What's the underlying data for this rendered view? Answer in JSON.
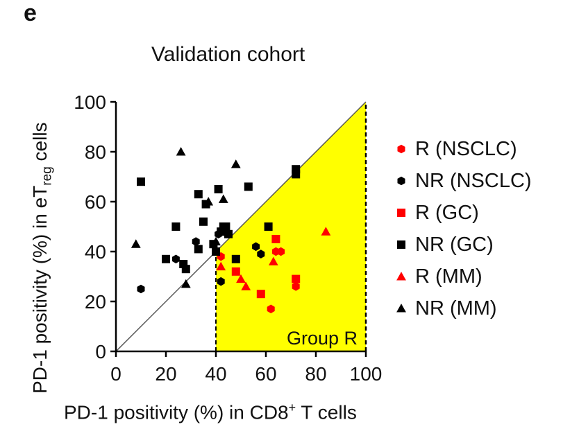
{
  "panel_letter": "e",
  "chart_data": {
    "type": "scatter",
    "title": "Validation cohort",
    "xlabel_parts": {
      "pre": "PD-1 positivity (%) in CD8",
      "sup": "+",
      "post": " T cells"
    },
    "ylabel_parts": {
      "pre": "PD-1 positivity (%) in eT",
      "sub": "reg",
      "post": " cells"
    },
    "xlim": [
      0,
      100
    ],
    "ylim": [
      0,
      100
    ],
    "xticks": [
      0,
      20,
      40,
      60,
      80,
      100
    ],
    "yticks": [
      0,
      20,
      40,
      60,
      80,
      100
    ],
    "region": {
      "label": "Group R",
      "color": "#ffff00",
      "x_threshold": 40,
      "x_max": 100,
      "bounded_by": "diagonal y = x"
    },
    "diagonal": [
      [
        0,
        0
      ],
      [
        100,
        100
      ]
    ],
    "legend_position": "right",
    "series": [
      {
        "name": "R (NSCLC)",
        "marker": "hexagon",
        "color": "#ff0000",
        "points": [
          [
            62,
            17
          ],
          [
            64,
            40
          ],
          [
            66,
            40
          ],
          [
            72,
            26
          ],
          [
            42,
            38
          ]
        ]
      },
      {
        "name": "NR (NSCLC)",
        "marker": "hexagon",
        "color": "#000000",
        "points": [
          [
            10,
            25
          ],
          [
            24,
            37
          ],
          [
            32,
            44
          ],
          [
            56,
            42
          ],
          [
            58,
            39
          ],
          [
            42,
            28
          ],
          [
            41,
            47
          ]
        ]
      },
      {
        "name": "R (GC)",
        "marker": "square",
        "color": "#ff0000",
        "points": [
          [
            64,
            45
          ],
          [
            72,
            29
          ],
          [
            58,
            23
          ],
          [
            48,
            32
          ]
        ]
      },
      {
        "name": "NR (GC)",
        "marker": "square",
        "color": "#000000",
        "points": [
          [
            10,
            68
          ],
          [
            20,
            37
          ],
          [
            24,
            50
          ],
          [
            27,
            35
          ],
          [
            28,
            33
          ],
          [
            33,
            41
          ],
          [
            33,
            63
          ],
          [
            35,
            52
          ],
          [
            36,
            59
          ],
          [
            39,
            43
          ],
          [
            40,
            40
          ],
          [
            41,
            65
          ],
          [
            42,
            48
          ],
          [
            43,
            50
          ],
          [
            44,
            50
          ],
          [
            45,
            47
          ],
          [
            48,
            37
          ],
          [
            53,
            66
          ],
          [
            61,
            50
          ],
          [
            72,
            73
          ],
          [
            72,
            71
          ]
        ]
      },
      {
        "name": "R (MM)",
        "marker": "triangle",
        "color": "#ff0000",
        "points": [
          [
            42,
            34
          ],
          [
            50,
            29
          ],
          [
            52,
            26
          ],
          [
            63,
            36
          ],
          [
            84,
            48
          ]
        ]
      },
      {
        "name": "NR (MM)",
        "marker": "triangle",
        "color": "#000000",
        "points": [
          [
            8,
            43
          ],
          [
            26,
            80
          ],
          [
            28,
            27
          ],
          [
            37,
            60
          ],
          [
            43,
            61
          ],
          [
            48,
            75
          ],
          [
            40,
            44
          ]
        ]
      }
    ]
  }
}
